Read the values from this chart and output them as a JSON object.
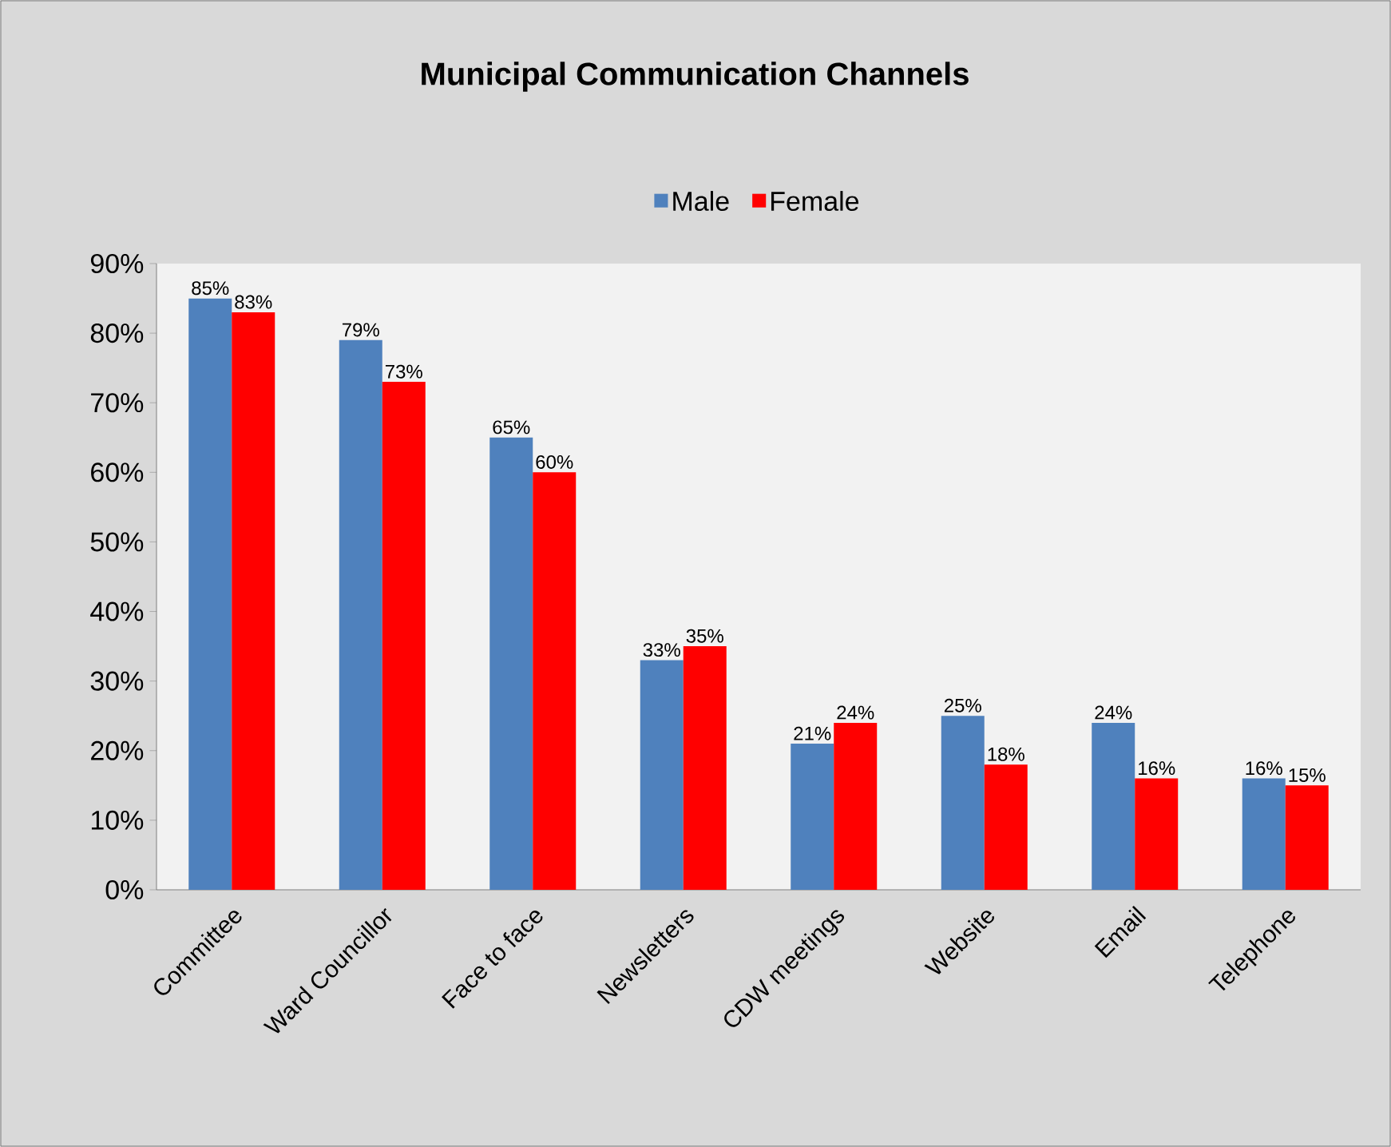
{
  "chart_data": {
    "type": "bar",
    "title": "Municipal Communication Channels",
    "categories": [
      "Committee",
      "Ward Councillor",
      "Face to face",
      "Newsletters",
      "CDW meetings",
      "Website",
      "Email",
      "Telephone"
    ],
    "series": [
      {
        "name": "Male",
        "color": "#4f81bd",
        "values": [
          85,
          79,
          65,
          33,
          21,
          25,
          24,
          16
        ],
        "value_labels": [
          "85%",
          "79%",
          "65%",
          "33%",
          "21%",
          "25%",
          "24%",
          "16%"
        ]
      },
      {
        "name": "Female",
        "color": "#ff0000",
        "values": [
          83,
          73,
          60,
          35,
          24,
          18,
          16,
          15
        ],
        "value_labels": [
          "83%",
          "73%",
          "60%",
          "35%",
          "24%",
          "18%",
          "16%",
          "15%"
        ]
      }
    ],
    "ylim": [
      0,
      90
    ],
    "yticks": [
      {
        "value": 0,
        "label": "0%"
      },
      {
        "value": 10,
        "label": "10%"
      },
      {
        "value": 20,
        "label": "20%"
      },
      {
        "value": 30,
        "label": "30%"
      },
      {
        "value": 40,
        "label": "40%"
      },
      {
        "value": 50,
        "label": "50%"
      },
      {
        "value": 60,
        "label": "60%"
      },
      {
        "value": 70,
        "label": "70%"
      },
      {
        "value": 80,
        "label": "80%"
      },
      {
        "value": 90,
        "label": "90%"
      }
    ],
    "legend": "top",
    "grid": false
  }
}
